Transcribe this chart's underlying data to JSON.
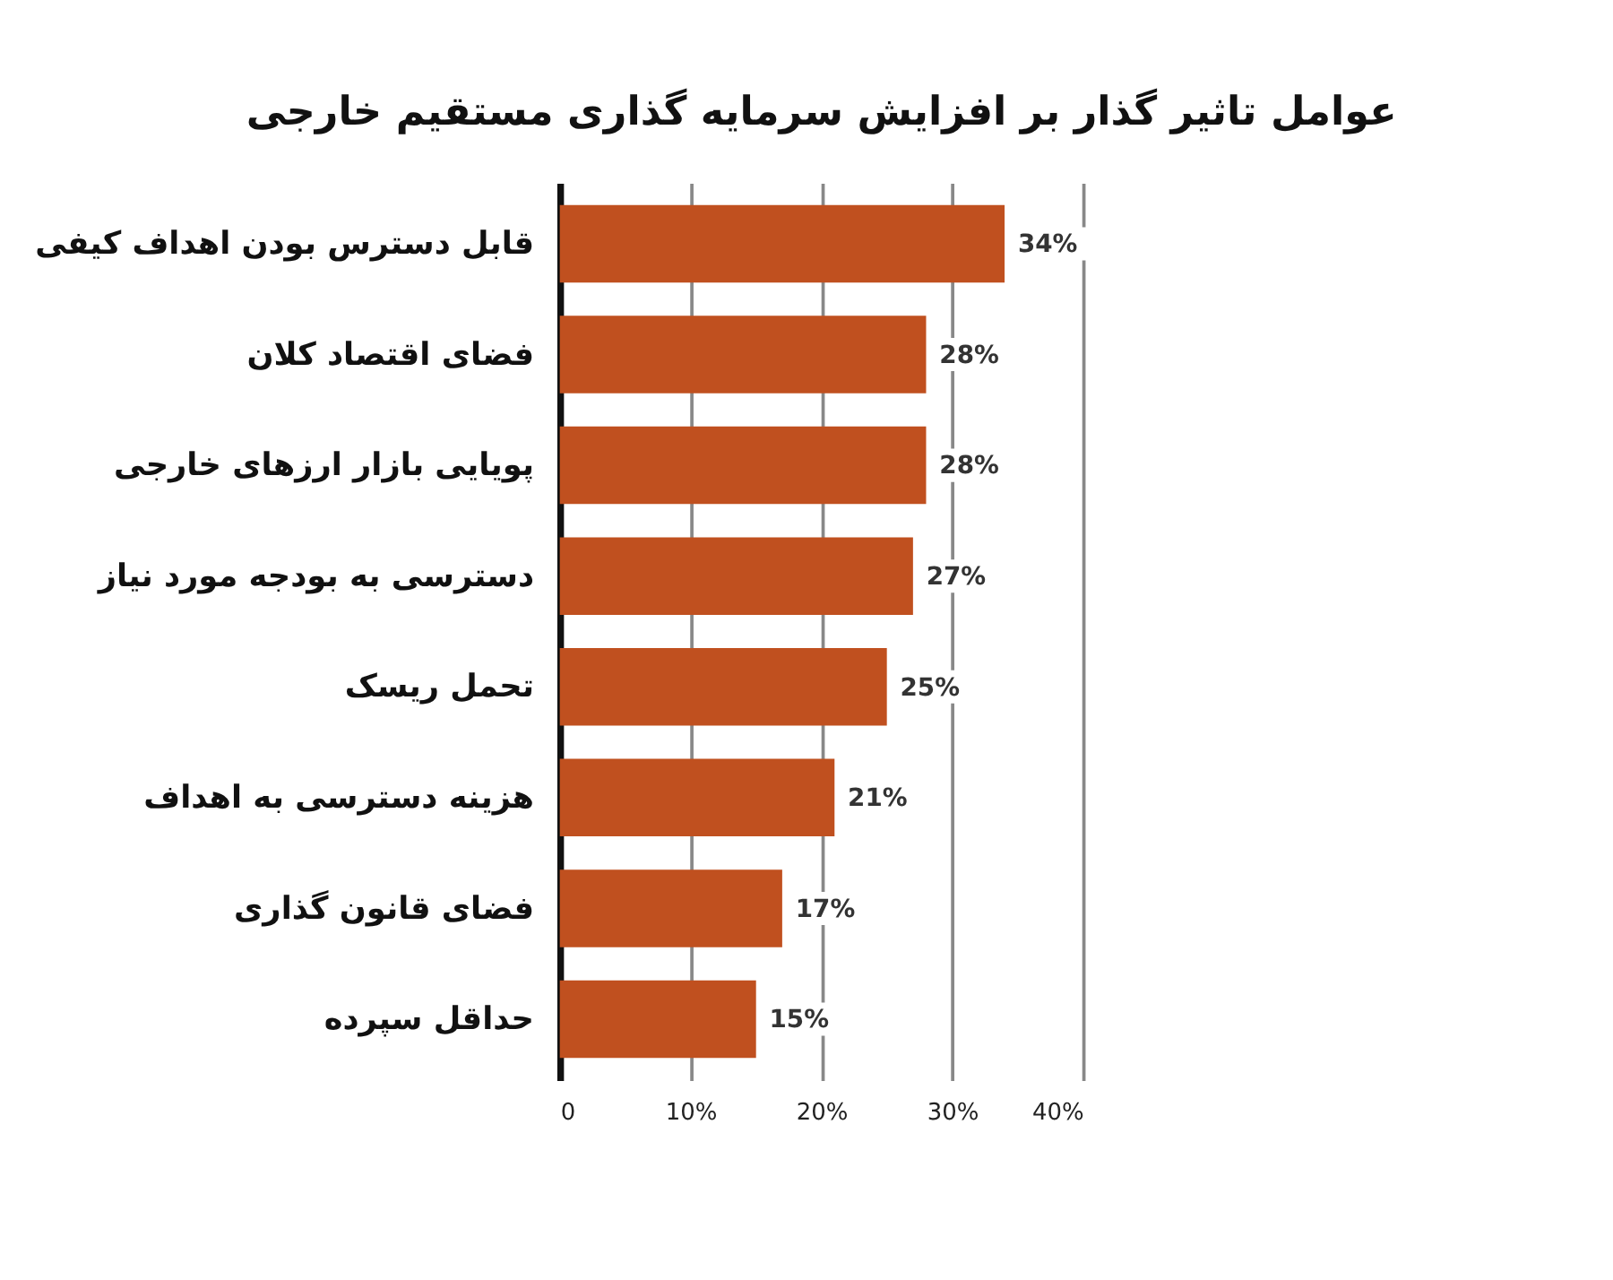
{
  "chart_data": {
    "type": "bar",
    "orientation": "horizontal",
    "title": "عوامل تاثیر گذار بر افزایش سرمایه گذاری مستقیم خارجی",
    "categories": [
      "قابل دسترس بودن اهداف کیفی",
      "فضای اقتصاد کلان",
      "پویایی بازار ارزهای خارجی",
      "دسترسی به بودجه مورد نیاز",
      "تحمل ریسک",
      "هزینه دسترسی به اهداف",
      "فضای قانون گذاری",
      "حداقل سپرده"
    ],
    "values": [
      34,
      28,
      28,
      27,
      25,
      21,
      17,
      15
    ],
    "value_labels": [
      "34%",
      "28%",
      "28%",
      "27%",
      "25%",
      "21%",
      "17%",
      "15%"
    ],
    "color": "#c0501f",
    "xlim": [
      0,
      40
    ],
    "xticks": [
      0,
      {
        "value": 10,
        "label": "10%"
      },
      {
        "value": 20,
        "label": "20%"
      },
      {
        "value": 30,
        "label": "30%"
      },
      {
        "value": 40,
        "label": "40%"
      }
    ],
    "grid": "x"
  }
}
